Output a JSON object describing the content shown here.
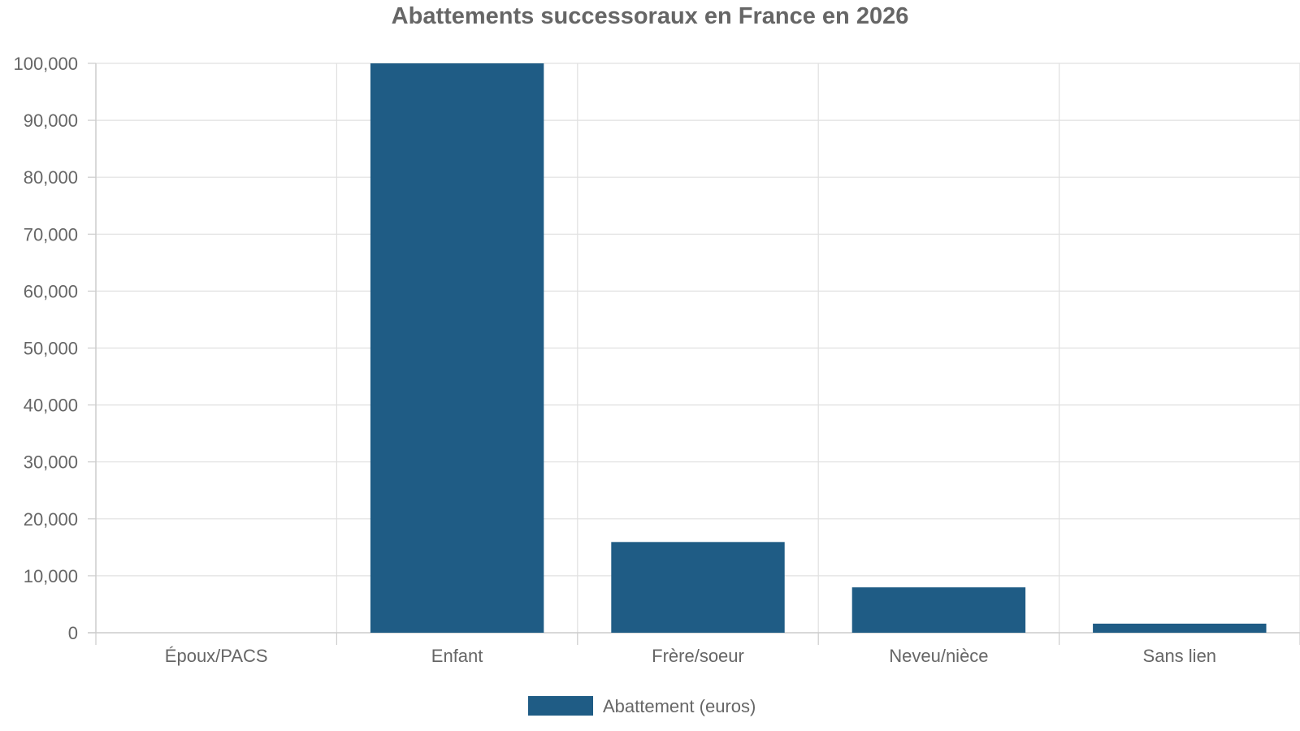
{
  "chart_data": {
    "type": "bar",
    "title": "Abattements successoraux en France en 2026",
    "xlabel": "",
    "ylabel": "",
    "categories": [
      "Époux/PACS",
      "Enfant",
      "Frère/soeur",
      "Neveu/nièce",
      "Sans lien"
    ],
    "series": [
      {
        "name": "Abattement (euros)",
        "values": [
          0,
          100000,
          15932,
          7967,
          1594
        ],
        "color": "#1f5c85"
      }
    ],
    "ylim": [
      0,
      100000
    ],
    "yticks": [
      0,
      10000,
      20000,
      30000,
      40000,
      50000,
      60000,
      70000,
      80000,
      90000,
      100000
    ],
    "ytick_labels": [
      "0",
      "10,000",
      "20,000",
      "30,000",
      "40,000",
      "50,000",
      "60,000",
      "70,000",
      "80,000",
      "90,000",
      "100,000"
    ],
    "grid": true,
    "legend_position": "bottom"
  }
}
